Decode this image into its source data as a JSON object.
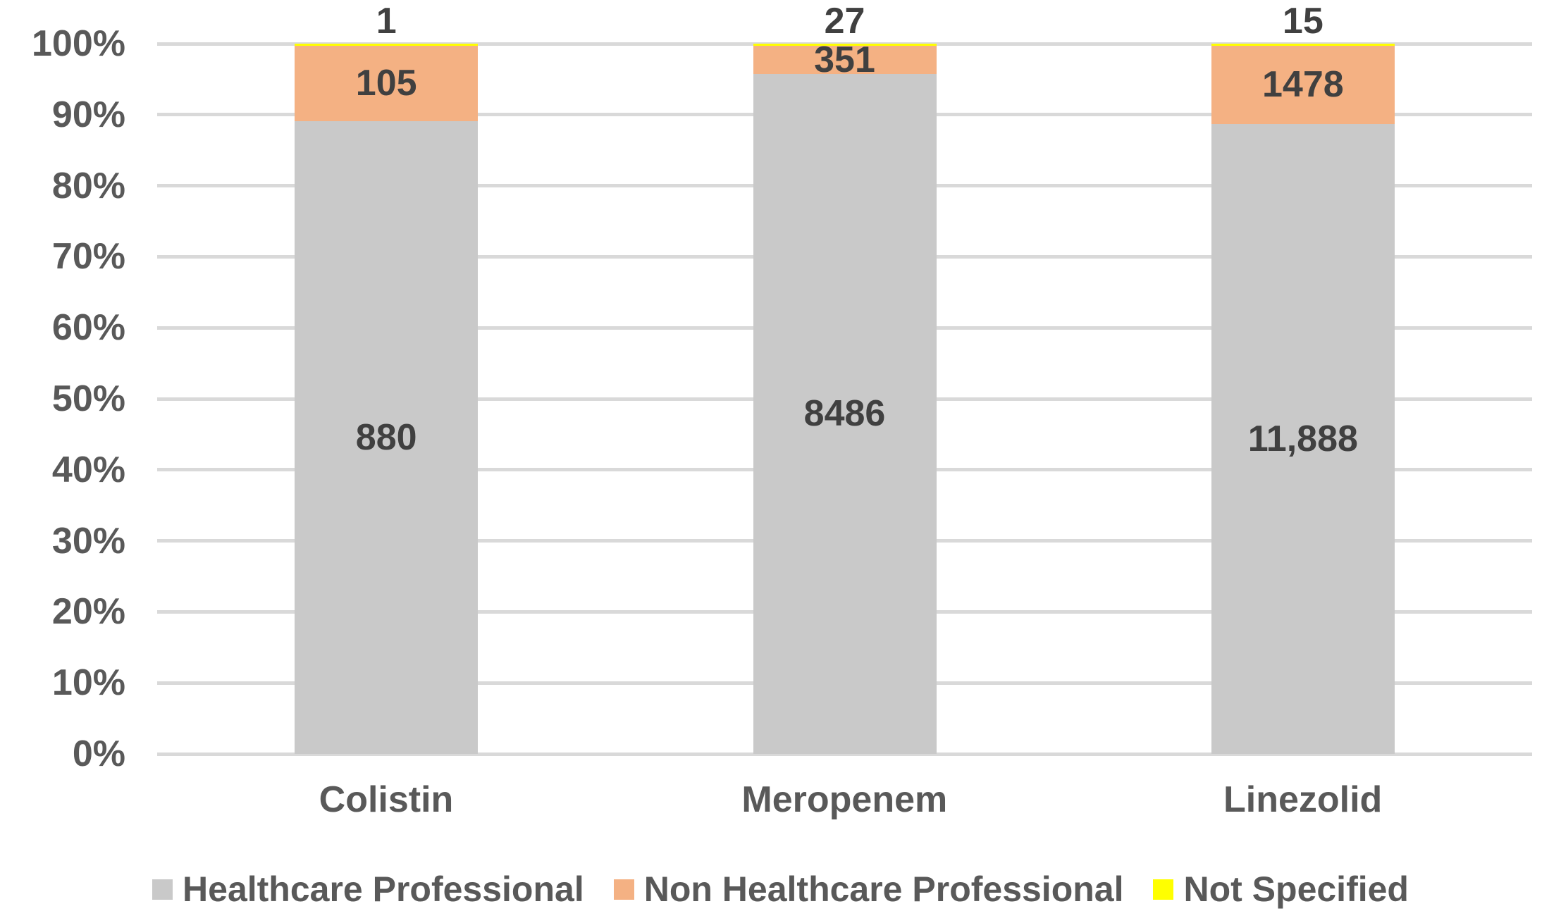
{
  "chart_data": {
    "type": "bar",
    "subtype": "stacked-100-percent",
    "title": "",
    "categories": [
      "Colistin",
      "Meropenem",
      "Linezolid"
    ],
    "series": [
      {
        "name": "Healthcare Professional",
        "color": "#C9C9C9",
        "values": [
          880,
          8486,
          11888
        ],
        "labels": [
          "880",
          "8486",
          "11,888"
        ],
        "label_placement": "inside"
      },
      {
        "name": "Non Healthcare Professional",
        "color": "#F4B183",
        "values": [
          105,
          351,
          1478
        ],
        "labels": [
          "105",
          "351",
          "1478"
        ],
        "label_placement": "inside"
      },
      {
        "name": "Not Specified",
        "color": "#FFFF00",
        "values": [
          1,
          27,
          15
        ],
        "labels": [
          "1",
          "27",
          "15"
        ],
        "label_placement": "above"
      }
    ],
    "y_axis": {
      "ticks": [
        "0%",
        "10%",
        "20%",
        "30%",
        "40%",
        "50%",
        "60%",
        "70%",
        "80%",
        "90%",
        "100%"
      ],
      "min": 0,
      "max": 100,
      "grid": true
    },
    "x_axis": {
      "label": ""
    },
    "legend": {
      "position": "bottom",
      "entries": [
        "Healthcare Professional",
        "Non Healthcare Professional",
        "Not Specified"
      ]
    },
    "style": {
      "gridline_color": "#D9D9D9",
      "axis_text_color": "#595959",
      "data_label_color": "#404040",
      "background": "#FFFFFF"
    }
  }
}
